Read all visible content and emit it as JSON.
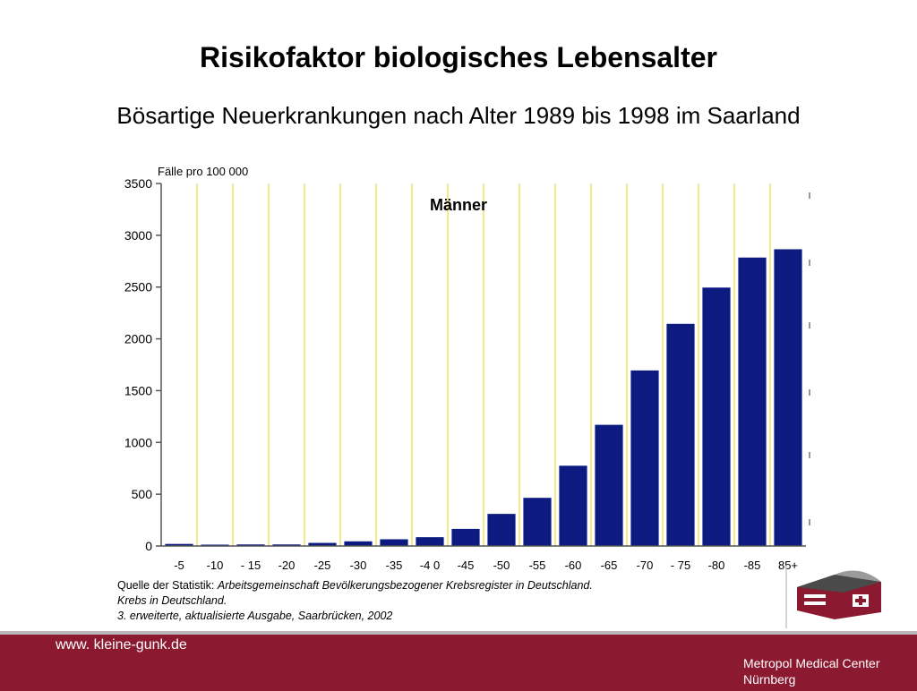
{
  "slide": {
    "title": "Risikofaktor biologisches Lebensalter",
    "subtitle": "Bösartige Neuerkrankungen nach Alter 1989 bis 1998 im Saarland"
  },
  "source": {
    "prefix": "Quelle der Statistik: ",
    "line1_italic": "Arbeitsgemeinschaft Bevölkerungsbezogener Krebsregister in Deutschland. Krebs in Deutschland.",
    "line2_italic": "3. erweiterte, aktualisierte Ausgabe, Saarbrücken, 2002"
  },
  "footer": {
    "url": "www. kleine-gunk.de",
    "org_line1": "Metropol Medical Center",
    "org_line2": "Nürnberg"
  },
  "colors": {
    "bar": "#0d1a80",
    "gridline": "#f0e060",
    "footer": "#8b1a30"
  },
  "chart_data": {
    "type": "bar",
    "ylabel": "Fälle pro 100 000",
    "annotation": "Männer",
    "ylim": [
      0,
      3500
    ],
    "yticks": [
      0,
      500,
      1000,
      1500,
      2000,
      2500,
      3000,
      3500
    ],
    "grid": "vertical lines between categories",
    "categories": [
      "-5",
      "-10",
      "- 15",
      "-20",
      "-25",
      "-30",
      "-35",
      "-4 0",
      "-45",
      "-50",
      "-55",
      "-60",
      "-65",
      "-70",
      "- 75",
      "-80",
      "-85",
      "85+"
    ],
    "values": [
      20,
      10,
      15,
      15,
      30,
      45,
      65,
      85,
      165,
      310,
      465,
      775,
      1170,
      1695,
      2145,
      2495,
      2785,
      2865
    ]
  }
}
